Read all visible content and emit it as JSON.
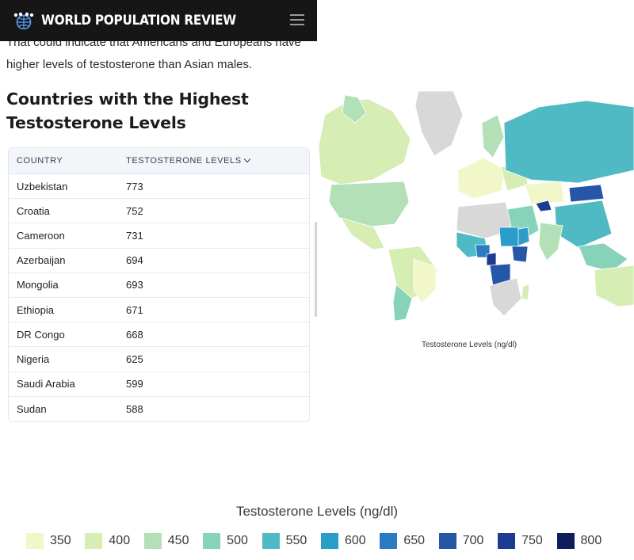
{
  "header": {
    "brand": "WORLD POPULATION REVIEW",
    "logo_icon": "globe-people-icon",
    "menu_icon": "hamburger-menu-icon"
  },
  "article": {
    "intro_partial": "That could indicate that Americans and Europeans have",
    "intro": "higher levels of testosterone than Asian males.",
    "heading": "Countries with the Highest Testosterone Levels"
  },
  "table": {
    "headers": {
      "country": "COUNTRY",
      "level": "TESTOSTERONE LEVELS"
    },
    "rows": [
      {
        "country": "Uzbekistan",
        "level": "773"
      },
      {
        "country": "Croatia",
        "level": "752"
      },
      {
        "country": "Cameroon",
        "level": "731"
      },
      {
        "country": "Azerbaijan",
        "level": "694"
      },
      {
        "country": "Mongolia",
        "level": "693"
      },
      {
        "country": "Ethiopia",
        "level": "671"
      },
      {
        "country": "DR Congo",
        "level": "668"
      },
      {
        "country": "Nigeria",
        "level": "625"
      },
      {
        "country": "Saudi Arabia",
        "level": "599"
      },
      {
        "country": "Sudan",
        "level": "588"
      }
    ]
  },
  "map": {
    "caption": "Testosterone Levels (ng/dl)"
  },
  "legend": {
    "title": "Testosterone Levels (ng/dl)",
    "items": [
      {
        "label": "350",
        "color": "#f1f7c8"
      },
      {
        "label": "400",
        "color": "#d6edb4"
      },
      {
        "label": "450",
        "color": "#b3e0b6"
      },
      {
        "label": "500",
        "color": "#86d3b9"
      },
      {
        "label": "550",
        "color": "#4fbac3"
      },
      {
        "label": "600",
        "color": "#2b9dc9"
      },
      {
        "label": "650",
        "color": "#2a7bc1"
      },
      {
        "label": "700",
        "color": "#2556a8"
      },
      {
        "label": "750",
        "color": "#1d3b90"
      },
      {
        "label": "800",
        "color": "#0d1e5a"
      }
    ]
  }
}
